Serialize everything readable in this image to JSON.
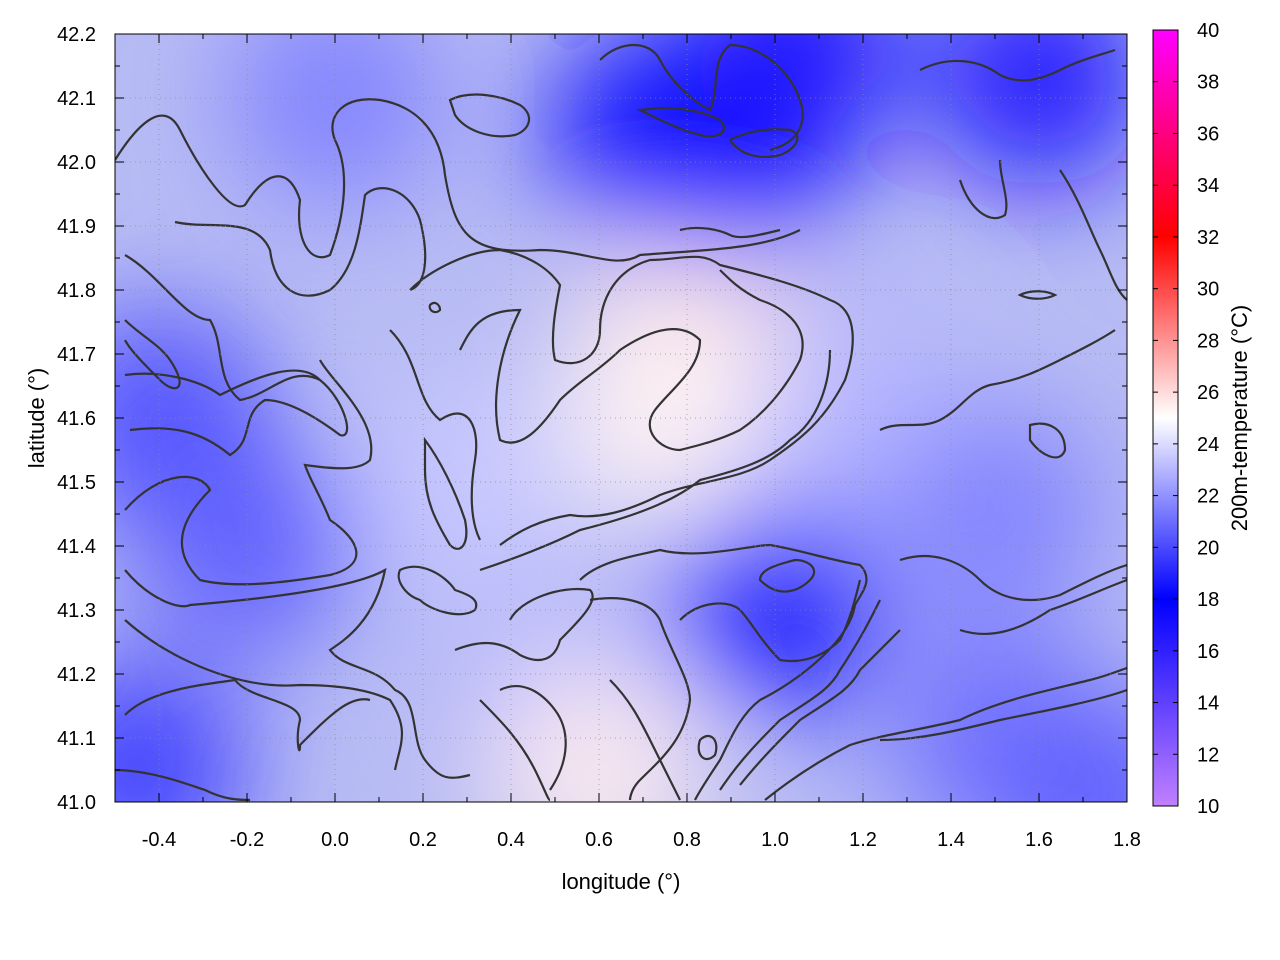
{
  "chart_data": {
    "type": "heatmap",
    "title": "",
    "xlabel": "longitude (°)",
    "ylabel": "latitude (°)",
    "colorbar_label": "200m-temperature (°C)",
    "xlim": [
      -0.5,
      1.8
    ],
    "ylim": [
      41.0,
      42.2
    ],
    "x_ticks": [
      "-0.4",
      "-0.2",
      "0.0",
      "0.2",
      "0.4",
      "0.6",
      "0.8",
      "1.0",
      "1.2",
      "1.4",
      "1.6",
      "1.8"
    ],
    "x_tick_values": [
      -0.4,
      -0.2,
      0.0,
      0.2,
      0.4,
      0.6,
      0.8,
      1.0,
      1.2,
      1.4,
      1.6,
      1.8
    ],
    "y_ticks": [
      "41.0",
      "41.1",
      "41.2",
      "41.3",
      "41.4",
      "41.5",
      "41.6",
      "41.7",
      "41.8",
      "41.9",
      "42.0",
      "42.1",
      "42.2"
    ],
    "y_tick_values": [
      41.0,
      41.1,
      41.2,
      41.3,
      41.4,
      41.5,
      41.6,
      41.7,
      41.8,
      41.9,
      42.0,
      42.1,
      42.2
    ],
    "colorbar_range": [
      10,
      40
    ],
    "colorbar_ticks": [
      "10",
      "12",
      "14",
      "16",
      "18",
      "20",
      "22",
      "24",
      "26",
      "28",
      "30",
      "32",
      "34",
      "36",
      "38",
      "40"
    ],
    "colorbar_tick_values": [
      10,
      12,
      14,
      16,
      18,
      20,
      22,
      24,
      26,
      28,
      30,
      32,
      34,
      36,
      38,
      40
    ],
    "colormap": [
      {
        "value": 10,
        "color": "#c080ff"
      },
      {
        "value": 18,
        "color": "#0000ff"
      },
      {
        "value": 25,
        "color": "#ffffff"
      },
      {
        "value": 32,
        "color": "#ff0000"
      },
      {
        "value": 40,
        "color": "#ff00ff"
      }
    ],
    "field_approx": {
      "description_points": [
        {
          "lon": -0.45,
          "lat": 41.05,
          "t": 19.5
        },
        {
          "lon": -0.4,
          "lat": 41.6,
          "t": 20.0
        },
        {
          "lon": -0.2,
          "lat": 41.4,
          "t": 20.5
        },
        {
          "lon": 0.0,
          "lat": 42.1,
          "t": 21.5
        },
        {
          "lon": 0.3,
          "lat": 41.5,
          "t": 23.5
        },
        {
          "lon": 0.5,
          "lat": 41.15,
          "t": 23.0
        },
        {
          "lon": 0.6,
          "lat": 41.05,
          "t": 25.5
        },
        {
          "lon": 0.8,
          "lat": 41.72,
          "t": 25.8
        },
        {
          "lon": 0.75,
          "lat": 41.6,
          "t": 25.3
        },
        {
          "lon": 0.72,
          "lat": 42.05,
          "t": 17.5
        },
        {
          "lon": 0.92,
          "lat": 42.02,
          "t": 17.5
        },
        {
          "lon": 1.05,
          "lat": 42.18,
          "t": 17.0
        },
        {
          "lon": 1.6,
          "lat": 42.13,
          "t": 17.0
        },
        {
          "lon": 1.0,
          "lat": 41.3,
          "t": 18.5
        },
        {
          "lon": 1.2,
          "lat": 41.6,
          "t": 23.0
        },
        {
          "lon": 1.5,
          "lat": 41.45,
          "t": 21.5
        },
        {
          "lon": 1.5,
          "lat": 41.1,
          "t": 21.0
        },
        {
          "lon": 1.75,
          "lat": 41.0,
          "t": 20.5
        }
      ]
    },
    "grid": true,
    "legend": "colorbar-right"
  }
}
